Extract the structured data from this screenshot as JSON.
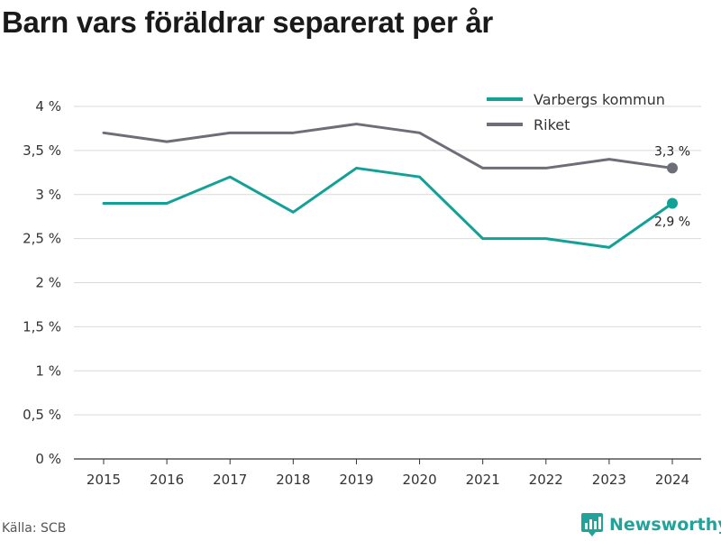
{
  "title": "Barn vars föräldrar separerat per år",
  "source": "Källa: SCB",
  "brand": {
    "name": "Newsworthy",
    "icon": "bar-chart-pin-icon",
    "color": "#22a39a"
  },
  "chart_data": {
    "type": "line",
    "title": "Barn vars föräldrar separerat per år",
    "x": [
      "2015",
      "2016",
      "2017",
      "2018",
      "2019",
      "2020",
      "2021",
      "2022",
      "2023",
      "2024"
    ],
    "series": [
      {
        "name": "Varbergs kommun",
        "color": "#12a197",
        "values": [
          2.9,
          2.9,
          3.2,
          2.8,
          3.3,
          3.2,
          2.5,
          2.5,
          2.4,
          2.9
        ],
        "end_label": "2,9 %"
      },
      {
        "name": "Riket",
        "color": "#6e6e78",
        "values": [
          3.7,
          3.6,
          3.7,
          3.7,
          3.8,
          3.7,
          3.3,
          3.3,
          3.4,
          3.3
        ],
        "end_label": "3,3 %"
      }
    ],
    "ylim": [
      0,
      4
    ],
    "yticks": [
      0,
      0.5,
      1,
      1.5,
      2,
      2.5,
      3,
      3.5,
      4
    ],
    "ytick_labels": [
      "0 %",
      "0,5 %",
      "1 %",
      "1,5 %",
      "2 %",
      "2,5 %",
      "3 %",
      "3,5 %",
      "4 %"
    ],
    "xlabel": "",
    "ylabel": "",
    "grid": true,
    "legend_position": "top-right"
  }
}
